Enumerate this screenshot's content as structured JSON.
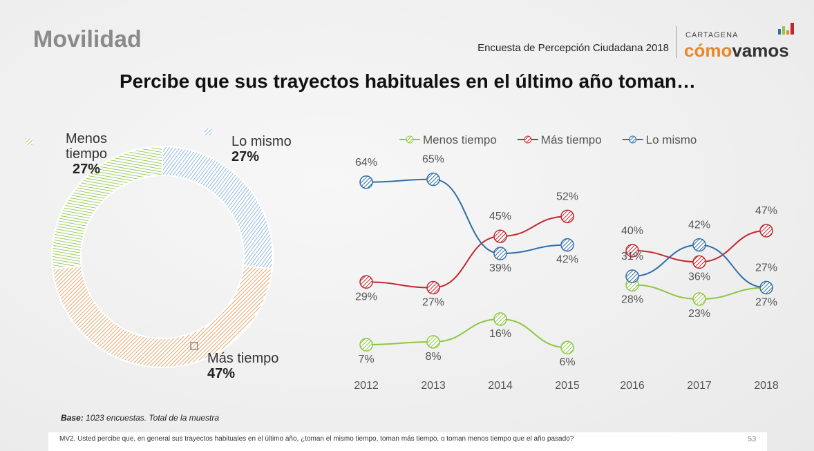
{
  "header": {
    "section": "Movilidad",
    "survey": "Encuesta de Percepción Ciudadana 2018",
    "logo_city": "CARTAGENA",
    "logo_word_1": "cómo",
    "logo_word_2": "vamos"
  },
  "title": "Percibe que sus trayectos habituales en el último año toman…",
  "chart_data": [
    {
      "type": "pie",
      "categories": [
        "Lo mismo",
        "Más tiempo",
        "Menos tiempo"
      ],
      "values": [
        27,
        47,
        27
      ],
      "value_labels": [
        "27%",
        "47%",
        "27%"
      ],
      "colors": [
        "#8db4e2",
        "#e3a56b",
        "#9bcb5b"
      ]
    },
    {
      "type": "line",
      "categories": [
        "2012",
        "2013",
        "2014",
        "2015"
      ],
      "ylim": [
        0,
        70
      ],
      "legend": "top",
      "series": [
        {
          "name": "Menos tiempo",
          "color": "#8dc640",
          "values": [
            7,
            8,
            16,
            6
          ],
          "value_labels": [
            "7%",
            "8%",
            "16%",
            "6%"
          ]
        },
        {
          "name": "Más tiempo",
          "color": "#c1272d",
          "values": [
            29,
            27,
            45,
            52
          ],
          "value_labels": [
            "29%",
            "27%",
            "45%",
            "52%"
          ]
        },
        {
          "name": "Lo mismo",
          "color": "#2f6da6",
          "values": [
            64,
            65,
            39,
            42
          ],
          "value_labels": [
            "64%",
            "65%",
            "39%",
            "42%"
          ]
        }
      ]
    },
    {
      "type": "line",
      "categories": [
        "2016",
        "2017",
        "2018"
      ],
      "ylim": [
        0,
        70
      ],
      "series": [
        {
          "name": "Menos tiempo",
          "color": "#8dc640",
          "values": [
            28,
            23,
            27
          ],
          "value_labels": [
            "28%",
            "23%",
            "27%"
          ]
        },
        {
          "name": "Más tiempo",
          "color": "#c1272d",
          "values": [
            40,
            36,
            47
          ],
          "value_labels": [
            "40%",
            "36%",
            "47%"
          ]
        },
        {
          "name": "Lo mismo",
          "color": "#2f6da6",
          "values": [
            31,
            42,
            27
          ],
          "value_labels": [
            "31%",
            "42%",
            "27%"
          ]
        }
      ]
    }
  ],
  "footer": {
    "base_label": "Base:",
    "base_text": "1023 encuestas. Total de la muestra",
    "question": "MV2. Usted percibe que, en general sus trayectos habituales en el último año, ¿toman el mismo tiempo, toman más tiempo, o toman menos tiempo que el año pasado?",
    "page": "53"
  }
}
